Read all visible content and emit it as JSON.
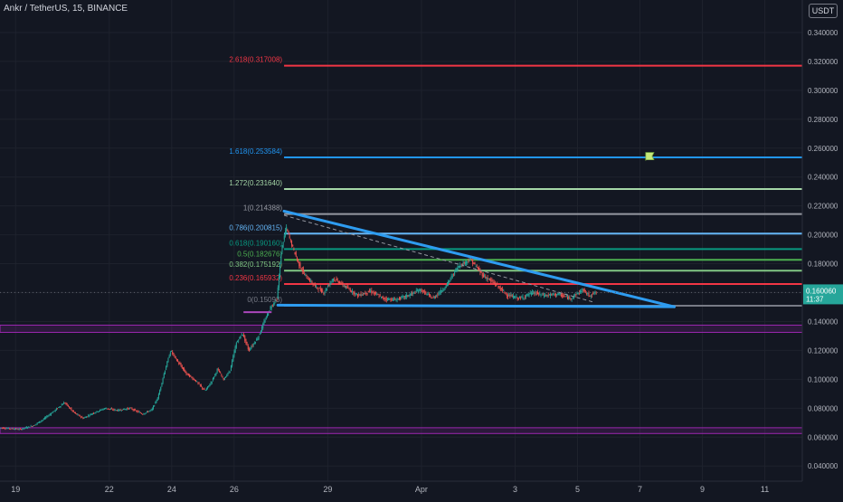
{
  "header": {
    "symbol": "Ankr / TetherUS, 15, BINANCE"
  },
  "currency_button": "USDT",
  "colors": {
    "background": "#131722",
    "grid": "#1e222d",
    "up": "#26a69a",
    "down": "#ef5350",
    "trendline": "#2e9cf0",
    "purple_band": "#9c27b0"
  },
  "chart_data": {
    "type": "candlestick",
    "symbol": "Ankr / TetherUS",
    "interval": "15",
    "exchange": "BINANCE",
    "y_axis": {
      "ylim": [
        0.0295,
        0.3625
      ],
      "ticks": [
        0.04,
        0.06,
        0.08,
        0.1,
        0.12,
        0.14,
        0.16,
        0.18,
        0.2,
        0.22,
        0.24,
        0.26,
        0.28,
        0.3,
        0.32,
        0.34
      ],
      "tick_labels": [
        "0.040000",
        "0.060000",
        "0.080000",
        "0.100000",
        "0.120000",
        "0.140000",
        "0.160000",
        "0.180000",
        "0.200000",
        "0.220000",
        "0.240000",
        "0.260000",
        "0.280000",
        "0.300000",
        "0.320000",
        "0.340000"
      ]
    },
    "x_axis": {
      "day_start": 18.5,
      "day_end": 44.2,
      "tick_days": [
        19,
        22,
        24,
        26,
        29,
        32,
        35,
        37,
        39,
        41,
        43
      ],
      "tick_labels": [
        "19",
        "22",
        "24",
        "26",
        "29",
        "Apr",
        "3",
        "5",
        "7",
        "9",
        "11"
      ]
    },
    "fib_levels": [
      {
        "level": "0",
        "price": 0.15093,
        "label": "0(0.15093)",
        "color": "#787b86"
      },
      {
        "level": "0.236",
        "price": 0.16593,
        "label": "0.236(0.165932)",
        "color": "#f23645"
      },
      {
        "level": "0.382",
        "price": 0.17519,
        "label": "0.382(0.175192)",
        "color": "#81c784"
      },
      {
        "level": "0.5",
        "price": 0.18267,
        "label": "0.5(0.182676)",
        "color": "#4caf50"
      },
      {
        "level": "0.618",
        "price": 0.19016,
        "label": "0.618(0.190160)",
        "color": "#089981"
      },
      {
        "level": "0.786",
        "price": 0.20082,
        "label": "0.786(0.200815)",
        "color": "#64b5f6"
      },
      {
        "level": "1",
        "price": 0.21439,
        "label": "1(0.214388)",
        "color": "#9598a1"
      },
      {
        "level": "1.272",
        "price": 0.23164,
        "label": "1.272(0.231640)",
        "color": "#a5d6a7"
      },
      {
        "level": "1.618",
        "price": 0.25358,
        "label": "1.618(0.253584)",
        "color": "#2196f3"
      },
      {
        "level": "2.618",
        "price": 0.31701,
        "label": "2.618(0.317008)",
        "color": "#f23645"
      }
    ],
    "fib_start_day": 27.6,
    "trendlines": [
      {
        "from": [
          27.6,
          0.2164
        ],
        "to": [
          40.1,
          0.1502
        ]
      },
      {
        "from": [
          27.4,
          0.1513
        ],
        "to": [
          40.1,
          0.1502
        ]
      }
    ],
    "dashed_line": {
      "from": [
        27.6,
        0.2135
      ],
      "to": [
        37.5,
        0.1535
      ]
    },
    "horizontal_zones": [
      {
        "top": 0.1375,
        "bottom": 0.1325
      },
      {
        "top": 0.0665,
        "bottom": 0.0625
      }
    ],
    "support_segment": {
      "from_day": 26.3,
      "to_day": 27.2,
      "price": 0.1465
    },
    "price_marker": {
      "price": "0.160060",
      "countdown": "11:37",
      "value": 0.16006
    },
    "flag_marker": {
      "day": 39.3,
      "price": 0.2538
    },
    "candles_path": [
      [
        18.5,
        0.0665
      ],
      [
        19.2,
        0.0655
      ],
      [
        19.6,
        0.068
      ],
      [
        19.9,
        0.072
      ],
      [
        20.2,
        0.077
      ],
      [
        20.6,
        0.084
      ],
      [
        20.9,
        0.077
      ],
      [
        21.2,
        0.073
      ],
      [
        21.5,
        0.0765
      ],
      [
        21.9,
        0.08
      ],
      [
        22.3,
        0.0785
      ],
      [
        22.7,
        0.08
      ],
      [
        23.1,
        0.076
      ],
      [
        23.4,
        0.079
      ],
      [
        23.6,
        0.088
      ],
      [
        23.8,
        0.105
      ],
      [
        24.0,
        0.12
      ],
      [
        24.2,
        0.113
      ],
      [
        24.5,
        0.104
      ],
      [
        24.8,
        0.099
      ],
      [
        25.1,
        0.092
      ],
      [
        25.3,
        0.098
      ],
      [
        25.5,
        0.107
      ],
      [
        25.7,
        0.1
      ],
      [
        25.9,
        0.106
      ],
      [
        26.1,
        0.125
      ],
      [
        26.3,
        0.132
      ],
      [
        26.5,
        0.12
      ],
      [
        26.8,
        0.129
      ],
      [
        27.0,
        0.14
      ],
      [
        27.2,
        0.15
      ],
      [
        27.4,
        0.155
      ],
      [
        27.55,
        0.19
      ],
      [
        27.7,
        0.205
      ],
      [
        27.9,
        0.192
      ],
      [
        28.1,
        0.18
      ],
      [
        28.3,
        0.172
      ],
      [
        28.6,
        0.165
      ],
      [
        28.9,
        0.16
      ],
      [
        29.2,
        0.17
      ],
      [
        29.6,
        0.164
      ],
      [
        30.0,
        0.158
      ],
      [
        30.4,
        0.161
      ],
      [
        30.8,
        0.156
      ],
      [
        31.2,
        0.155
      ],
      [
        31.6,
        0.158
      ],
      [
        32.0,
        0.162
      ],
      [
        32.4,
        0.156
      ],
      [
        32.8,
        0.164
      ],
      [
        33.2,
        0.178
      ],
      [
        33.6,
        0.183
      ],
      [
        34.0,
        0.172
      ],
      [
        34.4,
        0.166
      ],
      [
        34.8,
        0.158
      ],
      [
        35.2,
        0.156
      ],
      [
        35.6,
        0.16
      ],
      [
        36.0,
        0.158
      ],
      [
        36.4,
        0.159
      ],
      [
        36.8,
        0.156
      ],
      [
        37.2,
        0.162
      ],
      [
        37.4,
        0.158
      ],
      [
        37.6,
        0.16
      ]
    ]
  }
}
